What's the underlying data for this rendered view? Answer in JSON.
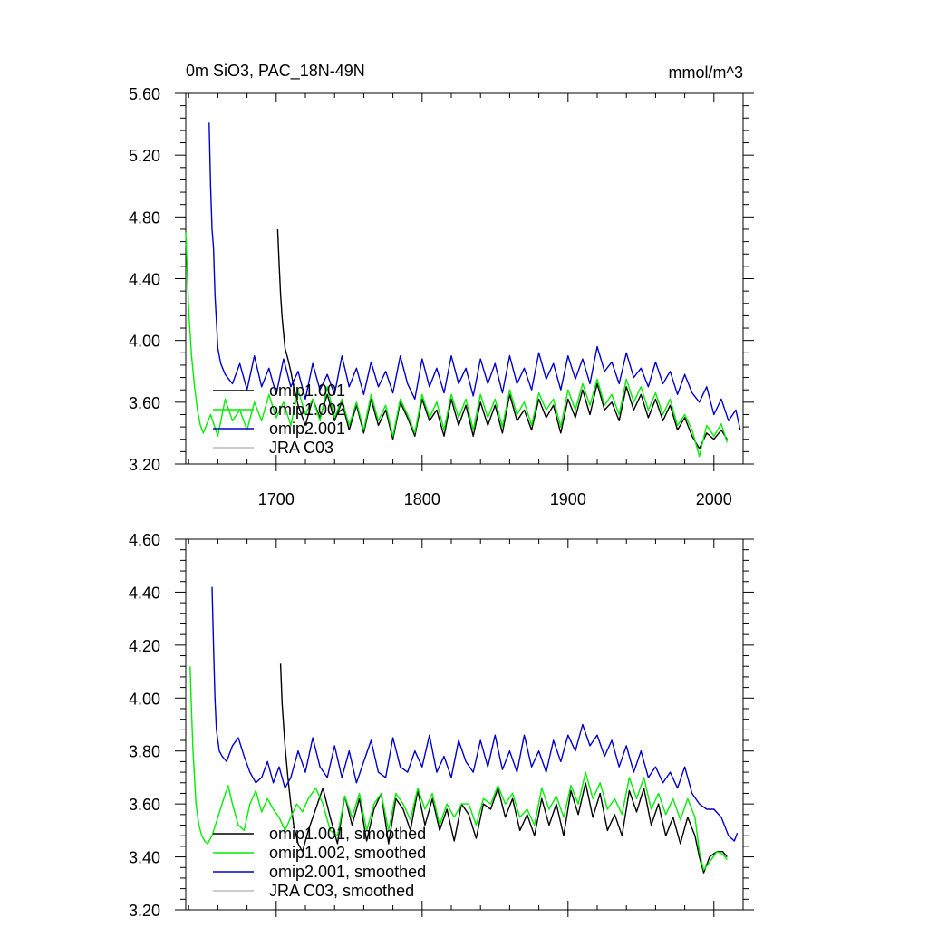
{
  "chart_data": [
    {
      "type": "line",
      "title": "0m SiO3, PAC_18N-49N",
      "units": "mmol/m^3",
      "xlim": [
        1638,
        2020
      ],
      "ylim": [
        3.2,
        5.6
      ],
      "xticks": [
        1700,
        1800,
        1900,
        2000
      ],
      "xtick_labels": [
        "1700",
        "1800",
        "1900",
        "2000"
      ],
      "yticks": [
        3.2,
        3.6,
        4.0,
        4.4,
        4.8,
        5.2,
        5.6
      ],
      "ytick_labels": [
        "3.20",
        "3.60",
        "4.00",
        "4.40",
        "4.80",
        "5.20",
        "5.60"
      ],
      "legend_position": "lower-left",
      "series": [
        {
          "name": "omip1.001",
          "color": "#000000",
          "x": [
            1701,
            1702,
            1703,
            1704,
            1705,
            1706,
            1708,
            1710,
            1712,
            1715,
            1720,
            1725,
            1730,
            1735,
            1740,
            1745,
            1750,
            1755,
            1760,
            1765,
            1770,
            1775,
            1780,
            1785,
            1790,
            1795,
            1800,
            1805,
            1810,
            1815,
            1820,
            1825,
            1830,
            1835,
            1840,
            1845,
            1850,
            1855,
            1860,
            1865,
            1870,
            1875,
            1880,
            1885,
            1890,
            1895,
            1900,
            1905,
            1910,
            1915,
            1920,
            1925,
            1930,
            1935,
            1940,
            1945,
            1950,
            1955,
            1960,
            1965,
            1970,
            1975,
            1980,
            1985,
            1990,
            1995,
            2000,
            2005,
            2009
          ],
          "y": [
            4.72,
            4.5,
            4.3,
            4.15,
            4.05,
            3.95,
            3.88,
            3.8,
            3.7,
            3.58,
            3.45,
            3.62,
            3.5,
            3.65,
            3.48,
            3.6,
            3.42,
            3.58,
            3.4,
            3.62,
            3.45,
            3.55,
            3.36,
            3.6,
            3.5,
            3.38,
            3.62,
            3.48,
            3.55,
            3.38,
            3.62,
            3.45,
            3.58,
            3.38,
            3.6,
            3.45,
            3.58,
            3.4,
            3.65,
            3.48,
            3.55,
            3.42,
            3.62,
            3.5,
            3.58,
            3.4,
            3.62,
            3.5,
            3.68,
            3.52,
            3.72,
            3.55,
            3.6,
            3.48,
            3.7,
            3.55,
            3.65,
            3.5,
            3.62,
            3.48,
            3.58,
            3.42,
            3.5,
            3.38,
            3.3,
            3.4,
            3.36,
            3.42,
            3.36
          ]
        },
        {
          "name": "omip1.002",
          "color": "#00ee00",
          "x": [
            1638,
            1640,
            1642,
            1644,
            1646,
            1648,
            1650,
            1655,
            1660,
            1665,
            1670,
            1675,
            1680,
            1685,
            1690,
            1695,
            1700,
            1705,
            1710,
            1715,
            1720,
            1725,
            1730,
            1735,
            1740,
            1745,
            1750,
            1755,
            1760,
            1765,
            1770,
            1775,
            1780,
            1785,
            1790,
            1795,
            1800,
            1805,
            1810,
            1815,
            1820,
            1825,
            1830,
            1835,
            1840,
            1845,
            1850,
            1855,
            1860,
            1865,
            1870,
            1875,
            1880,
            1885,
            1890,
            1895,
            1900,
            1905,
            1910,
            1915,
            1920,
            1925,
            1930,
            1935,
            1940,
            1945,
            1950,
            1955,
            1960,
            1965,
            1970,
            1975,
            1980,
            1985,
            1990,
            1995,
            2000,
            2005,
            2009
          ],
          "y": [
            4.7,
            4.2,
            3.9,
            3.7,
            3.55,
            3.45,
            3.4,
            3.52,
            3.38,
            3.62,
            3.48,
            3.55,
            3.42,
            3.6,
            3.48,
            3.65,
            3.5,
            3.6,
            3.45,
            3.68,
            3.52,
            3.62,
            3.48,
            3.7,
            3.5,
            3.62,
            3.45,
            3.6,
            3.42,
            3.65,
            3.48,
            3.58,
            3.38,
            3.62,
            3.52,
            3.4,
            3.65,
            3.5,
            3.6,
            3.42,
            3.65,
            3.5,
            3.62,
            3.42,
            3.65,
            3.5,
            3.62,
            3.44,
            3.68,
            3.52,
            3.6,
            3.45,
            3.66,
            3.55,
            3.62,
            3.44,
            3.68,
            3.55,
            3.72,
            3.58,
            3.75,
            3.58,
            3.65,
            3.52,
            3.75,
            3.6,
            3.7,
            3.55,
            3.66,
            3.52,
            3.62,
            3.45,
            3.52,
            3.42,
            3.25,
            3.45,
            3.38,
            3.46,
            3.34
          ]
        },
        {
          "name": "omip2.001",
          "color": "#0000cc",
          "x": [
            1654,
            1655,
            1656,
            1657,
            1658,
            1660,
            1662,
            1665,
            1670,
            1675,
            1680,
            1685,
            1690,
            1695,
            1700,
            1705,
            1710,
            1715,
            1720,
            1725,
            1730,
            1735,
            1740,
            1745,
            1750,
            1755,
            1760,
            1765,
            1770,
            1775,
            1780,
            1785,
            1790,
            1795,
            1800,
            1805,
            1810,
            1815,
            1820,
            1825,
            1830,
            1835,
            1840,
            1845,
            1850,
            1855,
            1860,
            1865,
            1870,
            1875,
            1880,
            1885,
            1890,
            1895,
            1900,
            1905,
            1910,
            1915,
            1920,
            1925,
            1930,
            1935,
            1940,
            1945,
            1950,
            1955,
            1960,
            1965,
            1970,
            1975,
            1980,
            1985,
            1990,
            1995,
            2000,
            2005,
            2010,
            2015,
            2018
          ],
          "y": [
            5.41,
            5.0,
            4.72,
            4.6,
            4.3,
            3.95,
            3.85,
            3.78,
            3.72,
            3.85,
            3.68,
            3.9,
            3.7,
            3.82,
            3.65,
            3.88,
            3.7,
            3.8,
            3.62,
            3.85,
            3.68,
            3.78,
            3.65,
            3.9,
            3.7,
            3.82,
            3.65,
            3.86,
            3.7,
            3.8,
            3.66,
            3.9,
            3.72,
            3.62,
            3.88,
            3.7,
            3.82,
            3.66,
            3.9,
            3.72,
            3.82,
            3.64,
            3.88,
            3.72,
            3.85,
            3.66,
            3.9,
            3.72,
            3.82,
            3.68,
            3.92,
            3.75,
            3.85,
            3.68,
            3.9,
            3.75,
            3.88,
            3.72,
            3.96,
            3.8,
            3.86,
            3.72,
            3.92,
            3.76,
            3.82,
            3.7,
            3.86,
            3.72,
            3.8,
            3.65,
            3.78,
            3.66,
            3.6,
            3.7,
            3.52,
            3.62,
            3.48,
            3.55,
            3.42
          ]
        },
        {
          "name": "JRA C03",
          "color": "#bbbbbb",
          "x": [],
          "y": []
        }
      ]
    },
    {
      "type": "line",
      "xlim": [
        1638,
        2020
      ],
      "ylim": [
        3.2,
        4.6
      ],
      "xticks": [
        1700,
        1800,
        1900,
        2000
      ],
      "yticks": [
        3.2,
        3.4,
        3.6,
        3.8,
        4.0,
        4.2,
        4.4,
        4.6
      ],
      "ytick_labels": [
        "3.20",
        "3.40",
        "3.60",
        "3.80",
        "4.00",
        "4.20",
        "4.40",
        "4.60"
      ],
      "legend_position": "lower-left",
      "series": [
        {
          "name": "omip1.001, smoothed",
          "color": "#000000",
          "x": [
            1703,
            1704,
            1706,
            1708,
            1710,
            1712,
            1715,
            1718,
            1722,
            1727,
            1732,
            1737,
            1742,
            1747,
            1752,
            1757,
            1762,
            1767,
            1772,
            1777,
            1782,
            1787,
            1792,
            1797,
            1802,
            1807,
            1812,
            1817,
            1822,
            1827,
            1832,
            1837,
            1842,
            1847,
            1852,
            1857,
            1862,
            1867,
            1872,
            1877,
            1882,
            1887,
            1892,
            1897,
            1902,
            1907,
            1912,
            1917,
            1922,
            1927,
            1932,
            1937,
            1942,
            1947,
            1952,
            1957,
            1962,
            1967,
            1972,
            1977,
            1982,
            1987,
            1990,
            1993,
            1997,
            2002,
            2006,
            2009
          ],
          "y": [
            4.13,
            3.98,
            3.82,
            3.7,
            3.6,
            3.52,
            3.45,
            3.42,
            3.5,
            3.58,
            3.66,
            3.55,
            3.45,
            3.63,
            3.52,
            3.62,
            3.46,
            3.58,
            3.64,
            3.45,
            3.62,
            3.58,
            3.5,
            3.65,
            3.52,
            3.62,
            3.5,
            3.58,
            3.46,
            3.6,
            3.56,
            3.47,
            3.6,
            3.58,
            3.66,
            3.55,
            3.62,
            3.5,
            3.56,
            3.48,
            3.62,
            3.52,
            3.6,
            3.48,
            3.65,
            3.56,
            3.68,
            3.55,
            3.64,
            3.5,
            3.56,
            3.48,
            3.65,
            3.57,
            3.66,
            3.52,
            3.6,
            3.48,
            3.55,
            3.45,
            3.55,
            3.48,
            3.4,
            3.34,
            3.4,
            3.42,
            3.42,
            3.4
          ]
        },
        {
          "name": "omip1.002, smoothed",
          "color": "#00ee00",
          "x": [
            1641,
            1642,
            1643,
            1645,
            1647,
            1649,
            1651,
            1653,
            1656,
            1660,
            1664,
            1667,
            1670,
            1674,
            1678,
            1682,
            1686,
            1690,
            1694,
            1698,
            1702,
            1706,
            1710,
            1714,
            1718,
            1722,
            1727,
            1732,
            1737,
            1742,
            1747,
            1752,
            1757,
            1762,
            1767,
            1772,
            1777,
            1782,
            1787,
            1792,
            1797,
            1802,
            1807,
            1812,
            1817,
            1822,
            1827,
            1832,
            1837,
            1842,
            1847,
            1852,
            1857,
            1862,
            1867,
            1872,
            1877,
            1882,
            1887,
            1892,
            1897,
            1902,
            1907,
            1912,
            1917,
            1922,
            1927,
            1932,
            1937,
            1942,
            1947,
            1952,
            1957,
            1962,
            1967,
            1972,
            1977,
            1982,
            1987,
            1990,
            1993,
            1997,
            2002,
            2006,
            2009
          ],
          "y": [
            4.12,
            3.95,
            3.8,
            3.6,
            3.52,
            3.48,
            3.46,
            3.45,
            3.48,
            3.55,
            3.62,
            3.67,
            3.6,
            3.52,
            3.5,
            3.6,
            3.65,
            3.57,
            3.62,
            3.58,
            3.55,
            3.5,
            3.55,
            3.6,
            3.57,
            3.62,
            3.66,
            3.6,
            3.5,
            3.48,
            3.63,
            3.55,
            3.64,
            3.5,
            3.6,
            3.64,
            3.5,
            3.64,
            3.6,
            3.54,
            3.66,
            3.58,
            3.64,
            3.52,
            3.6,
            3.55,
            3.6,
            3.6,
            3.52,
            3.62,
            3.6,
            3.67,
            3.6,
            3.64,
            3.55,
            3.58,
            3.52,
            3.66,
            3.58,
            3.63,
            3.55,
            3.67,
            3.6,
            3.72,
            3.62,
            3.68,
            3.58,
            3.62,
            3.56,
            3.7,
            3.62,
            3.7,
            3.58,
            3.64,
            3.56,
            3.62,
            3.54,
            3.62,
            3.55,
            3.42,
            3.35,
            3.38,
            3.42,
            3.41,
            3.39
          ]
        },
        {
          "name": "omip2.001, smoothed",
          "color": "#0000cc",
          "x": [
            1656,
            1657,
            1658,
            1659,
            1661,
            1663,
            1666,
            1670,
            1674,
            1678,
            1682,
            1686,
            1690,
            1694,
            1698,
            1702,
            1706,
            1710,
            1715,
            1720,
            1725,
            1730,
            1735,
            1740,
            1745,
            1750,
            1755,
            1760,
            1765,
            1770,
            1775,
            1780,
            1785,
            1790,
            1795,
            1800,
            1805,
            1810,
            1815,
            1820,
            1825,
            1830,
            1835,
            1840,
            1845,
            1850,
            1855,
            1860,
            1865,
            1870,
            1875,
            1880,
            1885,
            1890,
            1895,
            1900,
            1905,
            1910,
            1915,
            1920,
            1925,
            1930,
            1935,
            1940,
            1945,
            1950,
            1955,
            1960,
            1965,
            1970,
            1975,
            1980,
            1985,
            1990,
            1995,
            2000,
            2005,
            2010,
            2014,
            2016
          ],
          "y": [
            4.42,
            4.2,
            4.0,
            3.88,
            3.8,
            3.78,
            3.76,
            3.82,
            3.85,
            3.78,
            3.72,
            3.68,
            3.7,
            3.76,
            3.68,
            3.74,
            3.66,
            3.7,
            3.8,
            3.72,
            3.85,
            3.74,
            3.7,
            3.82,
            3.7,
            3.8,
            3.68,
            3.76,
            3.84,
            3.72,
            3.7,
            3.85,
            3.74,
            3.72,
            3.8,
            3.74,
            3.86,
            3.72,
            3.78,
            3.7,
            3.84,
            3.76,
            3.72,
            3.84,
            3.74,
            3.86,
            3.73,
            3.8,
            3.72,
            3.86,
            3.74,
            3.8,
            3.72,
            3.84,
            3.76,
            3.86,
            3.8,
            3.9,
            3.82,
            3.86,
            3.78,
            3.84,
            3.74,
            3.82,
            3.72,
            3.8,
            3.7,
            3.74,
            3.68,
            3.72,
            3.66,
            3.74,
            3.64,
            3.6,
            3.58,
            3.58,
            3.55,
            3.48,
            3.46,
            3.49
          ]
        },
        {
          "name": "JRA C03, smoothed",
          "color": "#bbbbbb",
          "x": [],
          "y": []
        }
      ]
    }
  ]
}
